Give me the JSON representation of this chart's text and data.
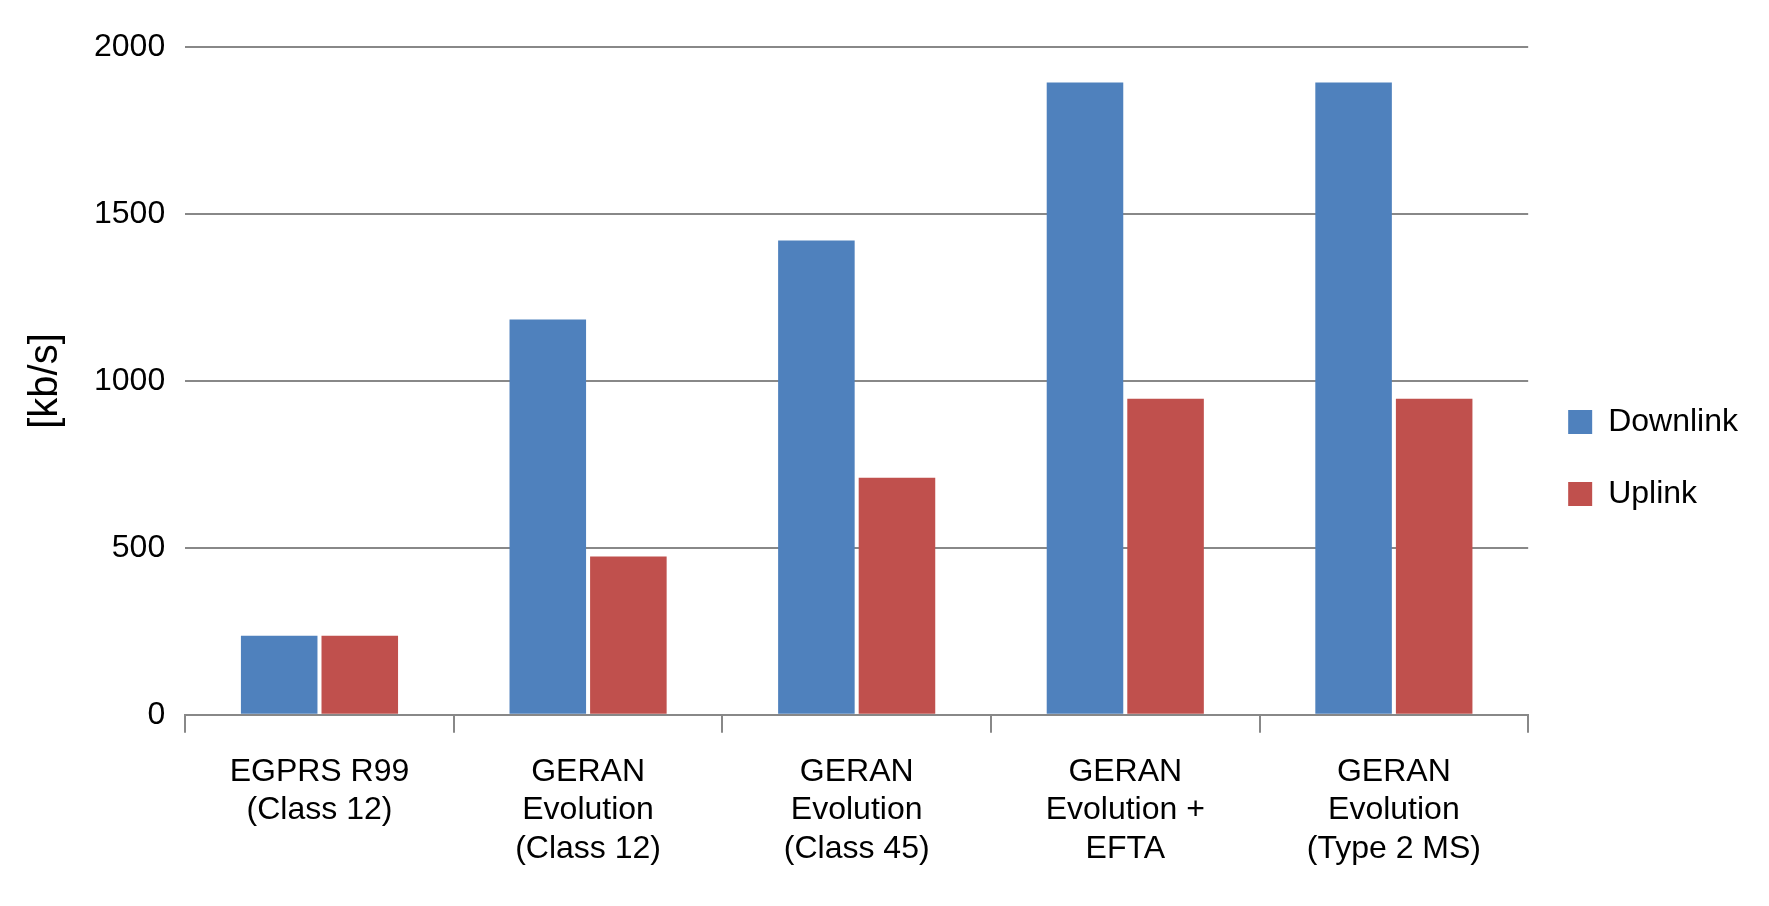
{
  "chart_data": {
    "type": "bar",
    "ylabel": "[kb/s]",
    "categories": [
      "EGPRS R99 (Class 12)",
      "GERAN Evolution (Class 12)",
      "GERAN Evolution (Class 45)",
      "GERAN Evolution + EFTA",
      "GERAN Evolution (Type 2 MS)"
    ],
    "series": [
      {
        "name": "Downlink",
        "color": "#4f81bd",
        "values": [
          237,
          1184,
          1421,
          1894,
          1894
        ]
      },
      {
        "name": "Uplink",
        "color": "#c0504d",
        "values": [
          237,
          474,
          710,
          947,
          947
        ]
      }
    ],
    "ylim": [
      0,
      2000
    ],
    "yticks": [
      0,
      500,
      1000,
      1500,
      2000
    ],
    "grid": "y",
    "legend": "right"
  }
}
